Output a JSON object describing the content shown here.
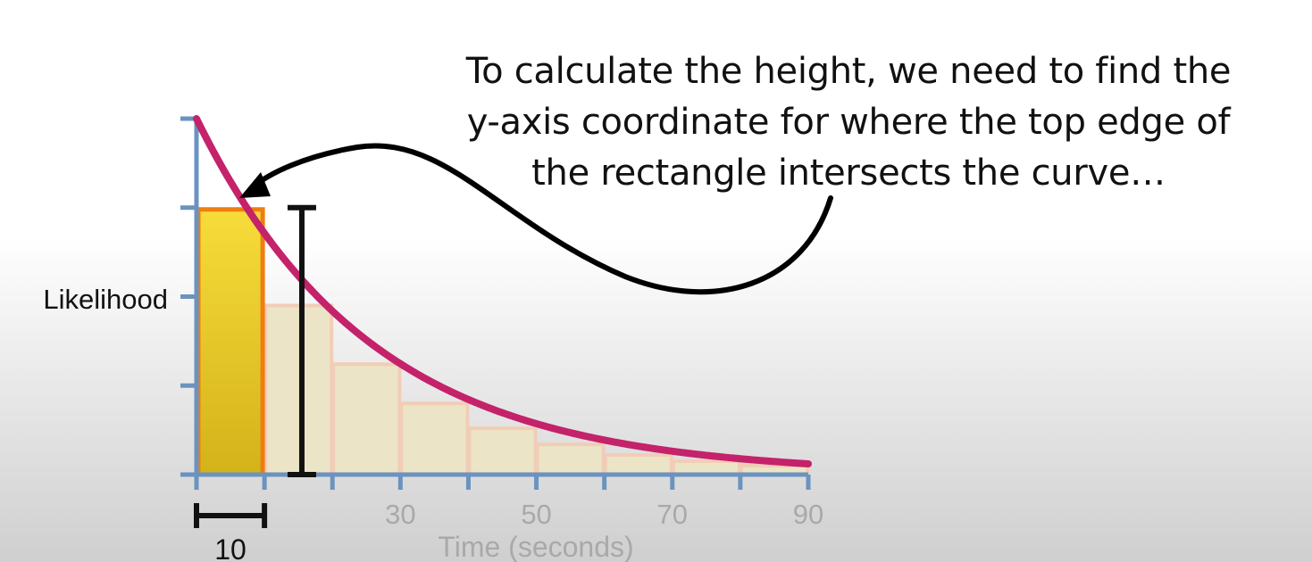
{
  "annotation": {
    "lines": [
      "To calculate the height, we need to find the",
      "y-axis coordinate for where the top edge of",
      "the rectangle intersects the curve…"
    ]
  },
  "chart_data": {
    "type": "bar",
    "title": "",
    "xlabel": "Time (seconds)",
    "ylabel": "Likelihood",
    "xlim": [
      0,
      90
    ],
    "ylim": [
      0,
      4
    ],
    "x_ticks": [
      0,
      10,
      20,
      30,
      40,
      50,
      60,
      70,
      80,
      90
    ],
    "x_tick_labels": [
      {
        "x": 30,
        "label": "30"
      },
      {
        "x": 50,
        "label": "50"
      },
      {
        "x": 70,
        "label": "70"
      },
      {
        "x": 90,
        "label": "90"
      }
    ],
    "y_ticks": [
      0,
      1,
      2,
      3,
      4
    ],
    "bin_width": 10,
    "bin_width_label": "10",
    "bars": [
      {
        "x0": 0,
        "x1": 10,
        "value": 3.0,
        "highlighted": true
      },
      {
        "x0": 10,
        "x1": 20,
        "value": 1.9,
        "highlighted": false
      },
      {
        "x0": 20,
        "x1": 30,
        "value": 1.24,
        "highlighted": false
      },
      {
        "x0": 30,
        "x1": 40,
        "value": 0.8,
        "highlighted": false
      },
      {
        "x0": 40,
        "x1": 50,
        "value": 0.52,
        "highlighted": false
      },
      {
        "x0": 50,
        "x1": 60,
        "value": 0.34,
        "highlighted": false
      },
      {
        "x0": 60,
        "x1": 70,
        "value": 0.22,
        "highlighted": false
      },
      {
        "x0": 70,
        "x1": 80,
        "value": 0.15,
        "highlighted": false
      },
      {
        "x0": 80,
        "x1": 90,
        "value": 0.1,
        "highlighted": false
      }
    ],
    "curve": {
      "type": "exponential",
      "y0": 4.0,
      "rate": 0.0389,
      "x_range": [
        0,
        90
      ]
    },
    "height_marker": {
      "x": 15.5,
      "from": 0,
      "to": 3.0
    },
    "colors": {
      "axis": "#6a93c0",
      "curve": "#c4226a",
      "highlight_fill_top": "#f7dc3a",
      "highlight_fill_bottom": "#d4b21a",
      "highlight_stroke": "#f07d10",
      "faded_fill": "#ece4c6",
      "faded_stroke": "#f1cdb7",
      "marker": "#111111",
      "tick_label": "#a9a9a9"
    },
    "legend": "none",
    "grid": false
  }
}
